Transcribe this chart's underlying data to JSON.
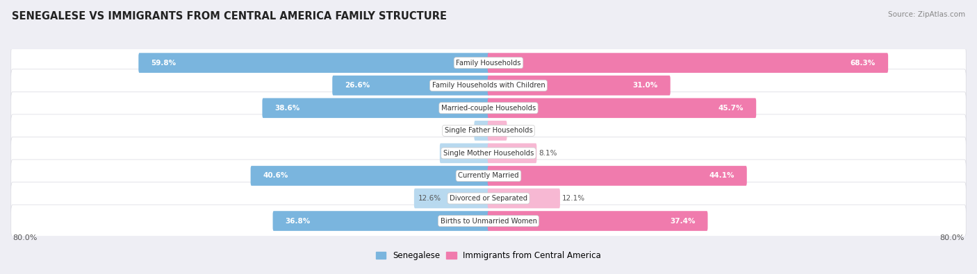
{
  "title": "SENEGALESE VS IMMIGRANTS FROM CENTRAL AMERICA FAMILY STRUCTURE",
  "source": "Source: ZipAtlas.com",
  "categories": [
    "Family Households",
    "Family Households with Children",
    "Married-couple Households",
    "Single Father Households",
    "Single Mother Households",
    "Currently Married",
    "Divorced or Separated",
    "Births to Unmarried Women"
  ],
  "senegalese": [
    59.8,
    26.6,
    38.6,
    2.3,
    8.2,
    40.6,
    12.6,
    36.8
  ],
  "immigrants": [
    68.3,
    31.0,
    45.7,
    3.0,
    8.1,
    44.1,
    12.1,
    37.4
  ],
  "sen_color": "#7ab5de",
  "imm_color": "#f07bad",
  "sen_color_light": "#b8d9ef",
  "imm_color_light": "#f7b8d3",
  "axis_max": 80.0,
  "axis_label_left": "80.0%",
  "axis_label_right": "80.0%",
  "legend_sen": "Senegalese",
  "legend_imm": "Immigrants from Central America",
  "bg_color": "#eeeef4",
  "row_bg_light": "#f5f5f8",
  "row_bg_white": "#ffffff",
  "title_fontsize": 10.5,
  "source_fontsize": 7.5,
  "bar_height": 0.58,
  "label_threshold": 15.0
}
